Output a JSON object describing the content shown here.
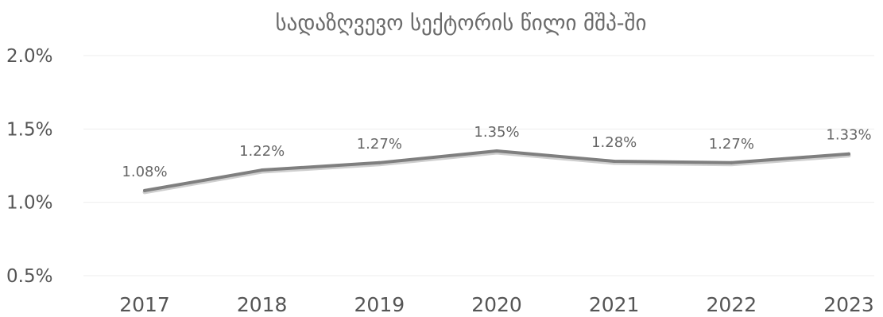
{
  "chart_data": {
    "type": "line",
    "title": "სადაზღვევო სექტორის წილი მშპ-ში",
    "xlabel": "",
    "ylabel": "",
    "categories": [
      "2017",
      "2018",
      "2019",
      "2020",
      "2021",
      "2022",
      "2023"
    ],
    "series": [
      {
        "values": [
          1.08,
          1.22,
          1.27,
          1.35,
          1.28,
          1.27,
          1.33
        ],
        "labels": [
          "1.08%",
          "1.22%",
          "1.27%",
          "1.35%",
          "1.28%",
          "1.27%",
          "1.33%"
        ]
      }
    ],
    "ylim": [
      0.5,
      2.0
    ],
    "yticks": [
      0.5,
      1.0,
      1.5,
      2.0
    ],
    "ytick_labels": [
      "0.5%",
      "1.0%",
      "1.5%",
      "2.0%"
    ],
    "grid": true,
    "line_color": "#7f7f7f"
  }
}
